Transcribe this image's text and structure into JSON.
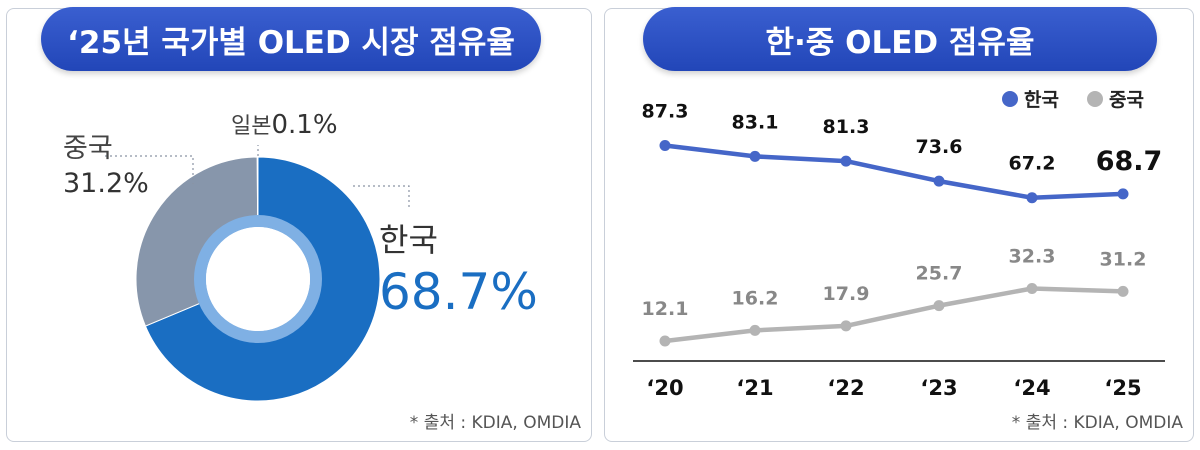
{
  "donut_panel": {
    "title": "‘25년 국가별 OLED 시장 점유율",
    "source": "* 출처 : KDIA, OMDIA"
  },
  "line_panel": {
    "title": "한·중 OLED 점유율",
    "source": "* 출처 : KDIA, OMDIA"
  },
  "colors": {
    "korea": "#4566c8",
    "china": "#b4b4b4",
    "donut_korea": "#1a6ec2",
    "donut_china": "#8796ab",
    "donut_japan": "#dfe3ea"
  },
  "chart_data": [
    {
      "type": "pie",
      "title": "‘25년 국가별 OLED 시장 점유율",
      "slices": [
        {
          "label": "한국",
          "value_label": "68.7%",
          "value": 68.7
        },
        {
          "label": "중국",
          "value_label": "31.2%",
          "value": 31.2
        },
        {
          "label": "일본",
          "value_label": "0.1%",
          "value": 0.1
        }
      ]
    },
    {
      "type": "line",
      "title": "한·중 OLED 점유율",
      "categories": [
        "‘20",
        "‘21",
        "‘22",
        "‘23",
        "‘24",
        "‘25"
      ],
      "series": [
        {
          "name": "한국",
          "values": [
            87.3,
            83.1,
            81.3,
            73.6,
            67.2,
            68.7
          ],
          "labels": [
            "87.3",
            "83.1",
            "81.3",
            "73.6",
            "67.2",
            "68.7"
          ]
        },
        {
          "name": "중국",
          "values": [
            12.1,
            16.2,
            17.9,
            25.7,
            32.3,
            31.2
          ],
          "labels": [
            "12.1",
            "16.2",
            "17.9",
            "25.7",
            "32.3",
            "31.2"
          ]
        }
      ],
      "legend": "top-right"
    }
  ]
}
